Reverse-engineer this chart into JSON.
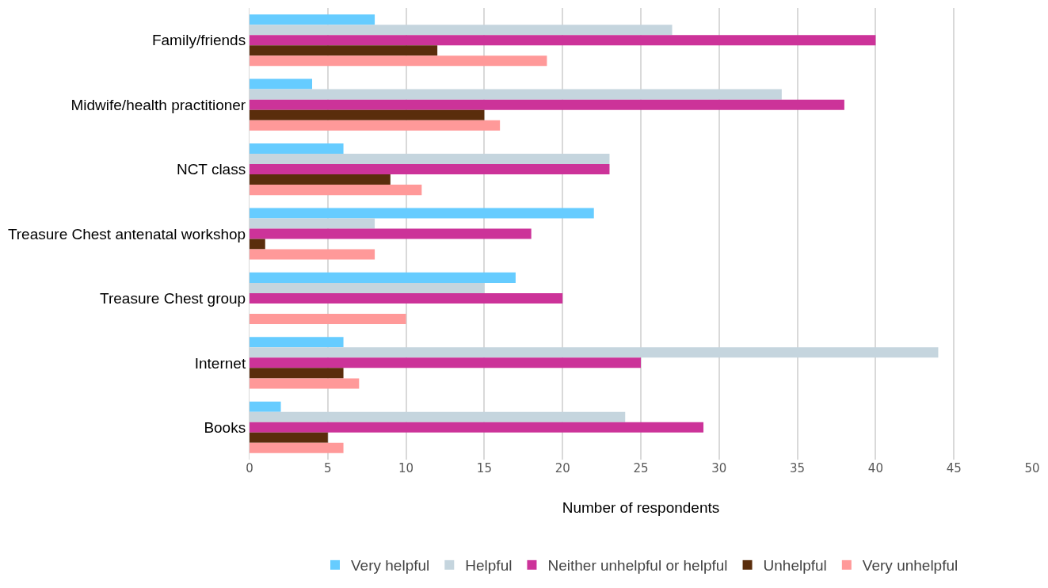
{
  "chart_data": {
    "type": "bar",
    "orientation": "horizontal",
    "xlabel": "Number of respondents",
    "categories": [
      "Family/friends",
      "Midwife/health practitioner",
      "NCT class",
      "Treasure Chest antenatal workshop",
      "Treasure Chest group",
      "Internet",
      "Books"
    ],
    "series": [
      {
        "name": "Very helpful",
        "color": "#66ccff",
        "values": [
          8,
          4,
          6,
          22,
          17,
          6,
          2
        ]
      },
      {
        "name": "Helpful",
        "color": "#c5d5de",
        "values": [
          27,
          34,
          23,
          8,
          15,
          44,
          24
        ]
      },
      {
        "name": "Neither unhelpful or helpful",
        "color": "#cc3399",
        "values": [
          40,
          38,
          23,
          18,
          20,
          25,
          29
        ]
      },
      {
        "name": "Unhelpful",
        "color": "#5a2d0c",
        "values": [
          12,
          15,
          9,
          1,
          0,
          6,
          5
        ]
      },
      {
        "name": "Very unhelpful",
        "color": "#ff9999",
        "values": [
          19,
          16,
          11,
          8,
          10,
          7,
          6
        ]
      }
    ],
    "xlim": [
      0,
      50
    ],
    "xticks": [
      0,
      5,
      10,
      15,
      20,
      25,
      30,
      35,
      40,
      45,
      50
    ],
    "grid": "x",
    "legend": "bottom"
  }
}
